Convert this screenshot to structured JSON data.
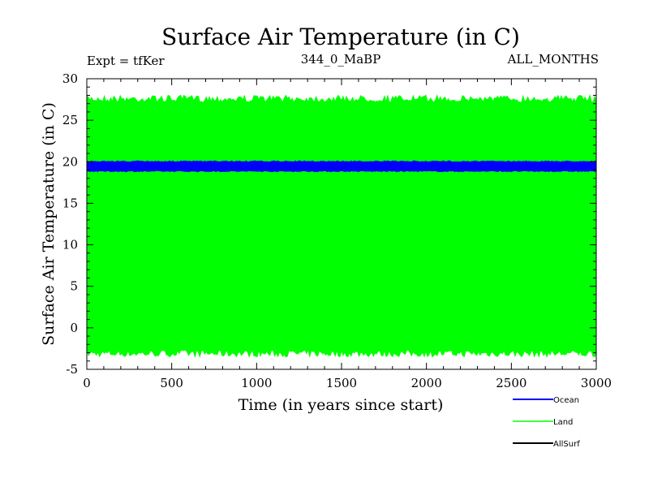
{
  "chart_data": {
    "type": "area",
    "title": "Surface Air Temperature (in C)",
    "subtitle_left": "Expt = tfKer",
    "subtitle_center": "344_0_MaBP",
    "subtitle_right": "ALL_MONTHS",
    "xlabel": "Time (in years since start)",
    "ylabel": "Surface Air Temperature (in C)",
    "xlim": [
      0,
      3000
    ],
    "ylim": [
      -5,
      30
    ],
    "xticks": [
      0,
      500,
      1000,
      1500,
      2000,
      2500,
      3000
    ],
    "yticks": [
      -5,
      0,
      5,
      10,
      15,
      20,
      25,
      30
    ],
    "grid": false,
    "legend_position": "bottom-right below plot",
    "series": [
      {
        "name": "Land",
        "color": "#00ff00",
        "style": "band",
        "min": -3.5,
        "max": 28.0,
        "mean": 12.2
      },
      {
        "name": "Ocean",
        "color": "#0000ff",
        "style": "band",
        "min": 18.8,
        "max": 20.1,
        "mean": 19.4
      },
      {
        "name": "AllSurf",
        "color": "#000000",
        "style": "line",
        "mean": 19.4
      }
    ]
  }
}
